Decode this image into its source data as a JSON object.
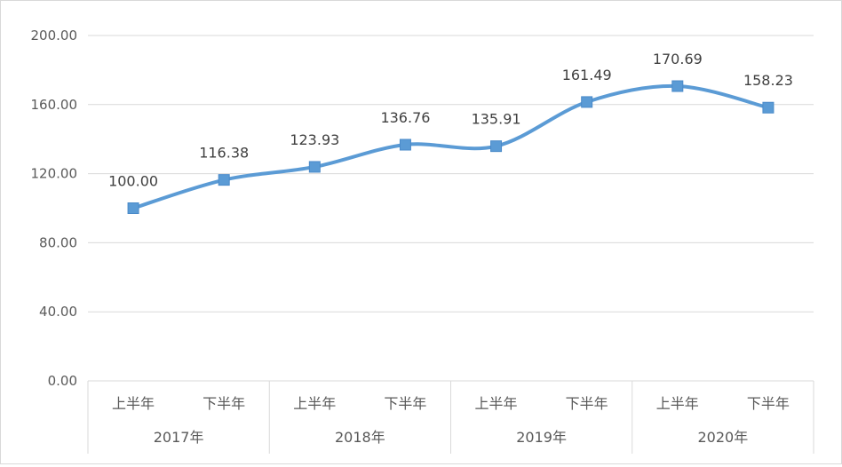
{
  "chart_data": {
    "type": "line",
    "title": "",
    "xlabel": "",
    "ylabel": "",
    "ylim": [
      0,
      200
    ],
    "yticks": [
      "0.00",
      "40.00",
      "80.00",
      "120.00",
      "160.00",
      "200.00"
    ],
    "grid": true,
    "legend": "none",
    "smooth": true,
    "marker": "square",
    "color": "#5b9bd5",
    "groups": [
      {
        "label": "2017年",
        "categories": [
          "上半年",
          "下半年"
        ]
      },
      {
        "label": "2018年",
        "categories": [
          "上半年",
          "下半年"
        ]
      },
      {
        "label": "2019年",
        "categories": [
          "上半年",
          "下半年"
        ]
      },
      {
        "label": "2020年",
        "categories": [
          "上半年",
          "下半年"
        ]
      }
    ],
    "categories": [
      "上半年",
      "下半年",
      "上半年",
      "下半年",
      "上半年",
      "下半年",
      "上半年",
      "下半年"
    ],
    "series": [
      {
        "values": [
          100.0,
          116.38,
          123.93,
          136.76,
          135.91,
          161.49,
          170.69,
          158.23
        ],
        "labels": [
          "100.00",
          "116.38",
          "123.93",
          "136.76",
          "135.91",
          "161.49",
          "170.69",
          "158.23"
        ]
      }
    ]
  }
}
